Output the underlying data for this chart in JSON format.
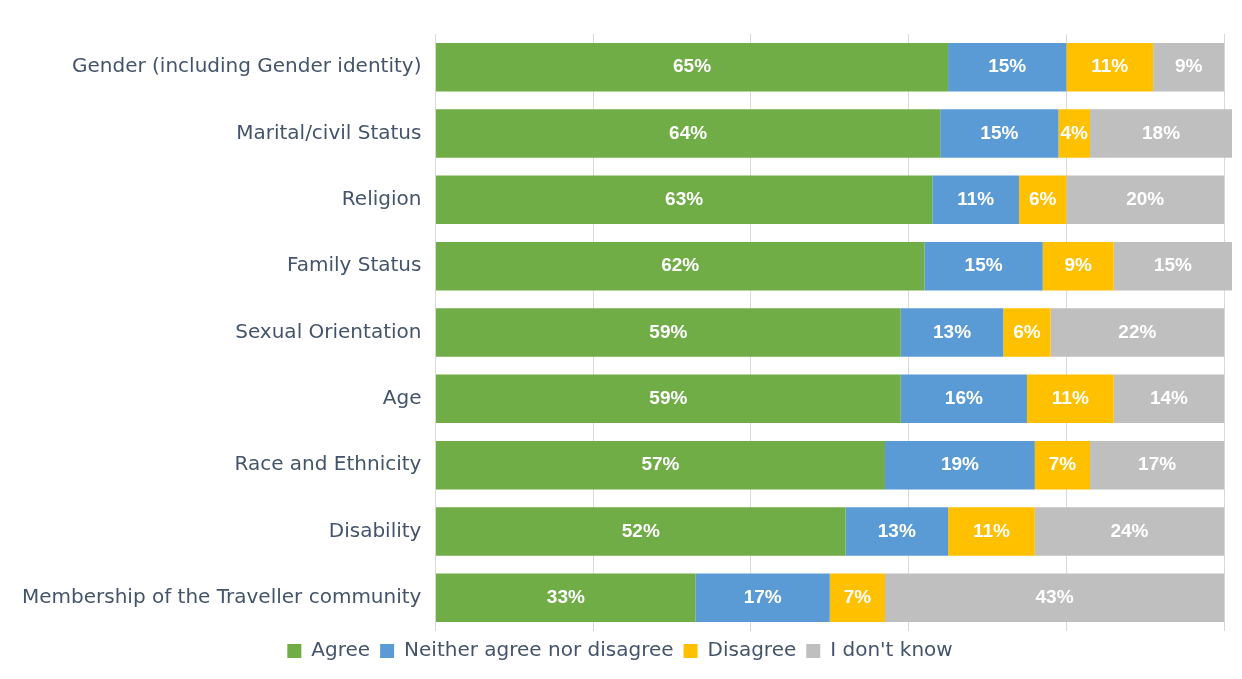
{
  "chart_data": {
    "type": "bar",
    "orientation": "horizontal",
    "stacked": true,
    "categories": [
      "Gender (including Gender identity)",
      "Marital/civil Status",
      "Religion",
      "Family Status",
      "Sexual Orientation",
      "Age",
      "Race and Ethnicity",
      "Disability",
      "Membership of the Traveller community"
    ],
    "series": [
      {
        "name": "Agree",
        "color": "#70ad47",
        "values": [
          65,
          64,
          63,
          62,
          59,
          59,
          57,
          52,
          33
        ],
        "value_labels": [
          "65%",
          "64%",
          "63%",
          "62%",
          "59%",
          "59%",
          "57%",
          "52%",
          "33%"
        ]
      },
      {
        "name": "Neither agree nor disagree",
        "color": "#5b9bd5",
        "values": [
          15,
          15,
          11,
          15,
          13,
          16,
          19,
          13,
          17
        ],
        "value_labels": [
          "15%",
          "15%",
          "11%",
          "15%",
          "13%",
          "16%",
          "19%",
          "13%",
          "17%"
        ]
      },
      {
        "name": "Disagree",
        "color": "#ffc000",
        "values": [
          11,
          4,
          6,
          9,
          6,
          11,
          7,
          11,
          7
        ],
        "value_labels": [
          "11%",
          "4%",
          "6%",
          "9%",
          "6%",
          "11%",
          "7%",
          "11%",
          "7%"
        ]
      },
      {
        "name": "I don't know",
        "color": "#bfbfbf",
        "values": [
          9,
          18,
          20,
          15,
          22,
          14,
          17,
          24,
          43
        ],
        "value_labels": [
          "9%",
          "18%",
          "20%",
          "15%",
          "22%",
          "14%",
          "17%",
          "24%",
          "43%"
        ]
      }
    ],
    "xlim": [
      0,
      101
    ],
    "xticks": [
      {
        "value": 0,
        "label": null
      },
      {
        "value": 20,
        "label": null
      },
      {
        "value": 40,
        "label": null
      },
      {
        "value": 60,
        "label": null
      },
      {
        "value": 80,
        "label": null
      },
      {
        "value": 100,
        "label": null
      }
    ],
    "tick_labels": "y",
    "grid": "x",
    "legend": "bottom"
  }
}
